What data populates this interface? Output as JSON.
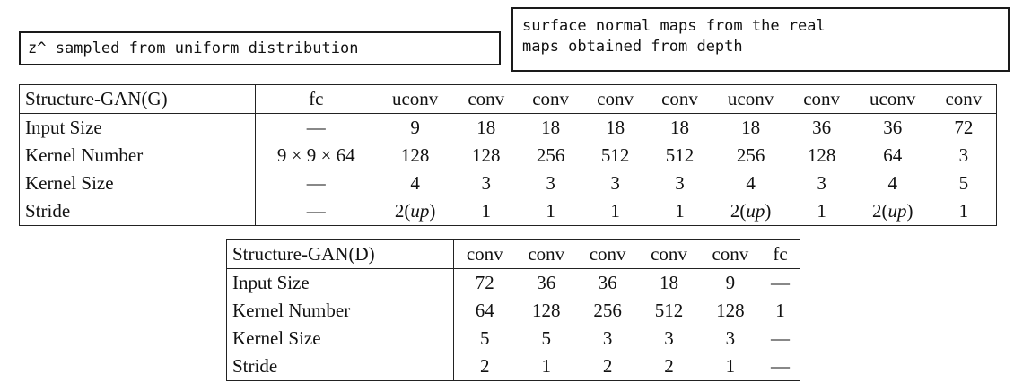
{
  "callouts": {
    "left": "z^ sampled from uniform distribution",
    "right": "surface normal maps from the real\nmaps obtained from depth"
  },
  "generator_table": {
    "header": [
      "Structure-GAN(G)",
      "fc",
      "uconv",
      "conv",
      "conv",
      "conv",
      "conv",
      "uconv",
      "conv",
      "uconv",
      "conv"
    ],
    "rows": [
      {
        "label": "Input Size",
        "cells": [
          "—",
          "9",
          "18",
          "18",
          "18",
          "18",
          "18",
          "36",
          "36",
          "72"
        ]
      },
      {
        "label": "Kernel Number",
        "cells": [
          "9 × 9 × 64",
          "128",
          "128",
          "256",
          "512",
          "512",
          "256",
          "128",
          "64",
          "3"
        ]
      },
      {
        "label": "Kernel Size",
        "cells": [
          "—",
          "4",
          "3",
          "3",
          "3",
          "3",
          "4",
          "3",
          "4",
          "5"
        ]
      },
      {
        "label": "Stride",
        "cells": [
          "—",
          "2(up)",
          "1",
          "1",
          "1",
          "1",
          "2(up)",
          "1",
          "2(up)",
          "1"
        ]
      }
    ]
  },
  "discriminator_table": {
    "header": [
      "Structure-GAN(D)",
      "conv",
      "conv",
      "conv",
      "conv",
      "conv",
      "fc"
    ],
    "rows": [
      {
        "label": "Input Size",
        "cells": [
          "72",
          "36",
          "36",
          "18",
          "9",
          "—"
        ]
      },
      {
        "label": "Kernel Number",
        "cells": [
          "64",
          "128",
          "256",
          "512",
          "128",
          "1"
        ]
      },
      {
        "label": "Kernel Size",
        "cells": [
          "5",
          "5",
          "3",
          "3",
          "3",
          "—"
        ]
      },
      {
        "label": "Stride",
        "cells": [
          "2",
          "1",
          "2",
          "2",
          "1",
          "—"
        ]
      }
    ]
  }
}
